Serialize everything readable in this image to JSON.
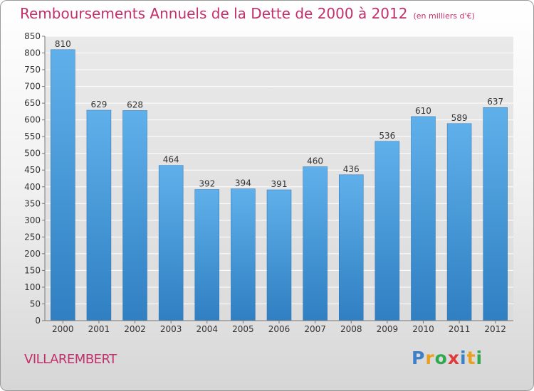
{
  "chart_data": {
    "type": "bar",
    "title": "Remboursements Annuels de la Dette de 2000 à 2012",
    "subtitle": "(en milliers d'€)",
    "xlabel": "",
    "ylabel": "",
    "categories": [
      "2000",
      "2001",
      "2002",
      "2003",
      "2004",
      "2005",
      "2006",
      "2007",
      "2008",
      "2009",
      "2010",
      "2011",
      "2012"
    ],
    "values": [
      810,
      629,
      628,
      464,
      392,
      394,
      391,
      460,
      436,
      536,
      610,
      589,
      637
    ],
    "ylim": [
      0,
      850
    ],
    "yticks": [
      0,
      50,
      100,
      150,
      200,
      250,
      300,
      350,
      400,
      450,
      500,
      550,
      600,
      650,
      700,
      750,
      800,
      850
    ],
    "grid": true,
    "legend": "none",
    "bar_color": "#4a9fe0"
  },
  "commune": "VILLAREMBERT",
  "logo": {
    "letters": [
      "P",
      "r",
      "o",
      "x",
      "i",
      "t",
      "i"
    ],
    "colors": [
      "#3d7fc8",
      "#e8a020",
      "#2fa84f",
      "#e03a3a",
      "#3d7fc8",
      "#e8a020",
      "#2fa84f"
    ]
  }
}
